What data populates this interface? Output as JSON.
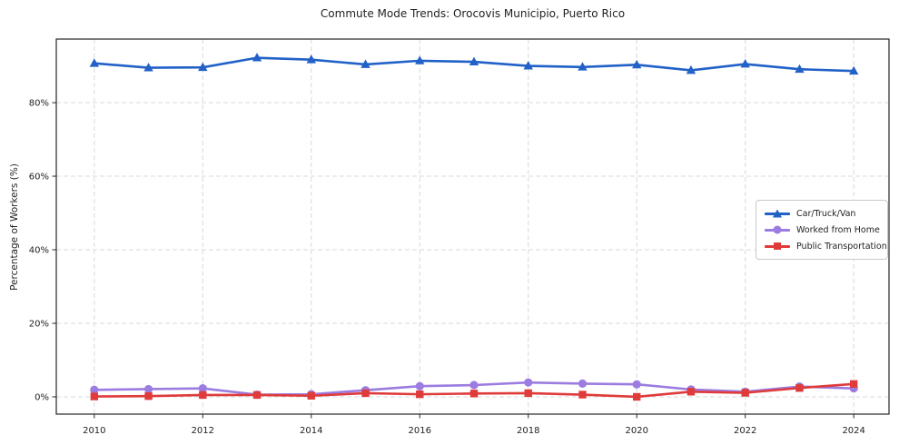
{
  "page": {
    "background": "#ffffff"
  },
  "chart_data": {
    "type": "line",
    "title": "Commute Mode Trends: Orocovis Municipio, Puerto Rico",
    "xlabel": "",
    "ylabel": "Percentage of Workers (%)",
    "x": [
      2010,
      2011,
      2012,
      2013,
      2014,
      2015,
      2016,
      2017,
      2018,
      2019,
      2020,
      2021,
      2022,
      2023,
      2024
    ],
    "x_ticks": [
      2010,
      2012,
      2014,
      2016,
      2018,
      2020,
      2022,
      2024
    ],
    "x_tick_labels": [
      "2010",
      "2012",
      "2014",
      "2016",
      "2018",
      "2020",
      "2022",
      "2024"
    ],
    "y_ticks": [
      0,
      20,
      40,
      60,
      80
    ],
    "y_tick_labels": [
      "0%",
      "20%",
      "40%",
      "60%",
      "80%"
    ],
    "xlim": [
      2009.3,
      2024.65
    ],
    "ylim": [
      -4.7,
      97.3
    ],
    "grid": {
      "shown": true,
      "style": "dashed",
      "color": "#d9d9d9"
    },
    "legend": {
      "position": "center-right",
      "border_color": "#c9c9c9",
      "background": "#ffffff"
    },
    "axis_color": "#262626",
    "tick_label_color": "#1f1f1f",
    "series": [
      {
        "name": "Car/Truck/Van",
        "color": "#2161c8",
        "marker": "triangle",
        "values": [
          90.7,
          89.5,
          89.6,
          92.2,
          91.7,
          90.4,
          91.4,
          91.1,
          90.0,
          89.7,
          90.3,
          88.8,
          90.5,
          89.1,
          88.6
        ]
      },
      {
        "name": "Worked from Home",
        "color": "#9c7ce0",
        "marker": "circle",
        "values": [
          1.9,
          2.1,
          2.3,
          0.6,
          0.7,
          1.8,
          2.9,
          3.2,
          3.9,
          3.6,
          3.4,
          2.0,
          1.4,
          2.8,
          2.3
        ]
      },
      {
        "name": "Public Transportation",
        "color": "#e03b3b",
        "marker": "square",
        "values": [
          0.1,
          0.2,
          0.5,
          0.5,
          0.3,
          1.0,
          0.7,
          0.9,
          1.0,
          0.6,
          0.0,
          1.4,
          1.1,
          2.4,
          3.5
        ]
      }
    ]
  }
}
